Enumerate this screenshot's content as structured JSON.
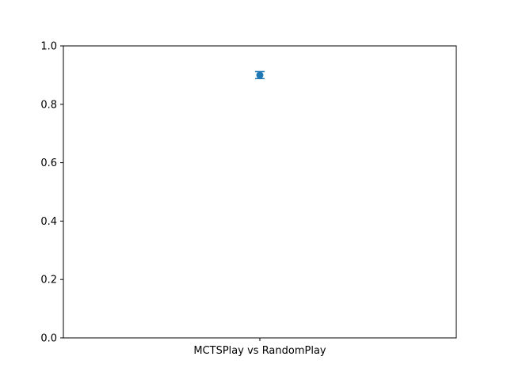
{
  "chart_data": {
    "type": "scatter",
    "title": "",
    "xlabel": "",
    "ylabel": "",
    "categories": [
      "MCTSPlay vs RandomPlay"
    ],
    "series": [
      {
        "values": [
          0.9
        ],
        "error_low": [
          0.888
        ],
        "error_high": [
          0.912
        ],
        "color": "#1f77b4"
      }
    ],
    "ylim": [
      0,
      1.0
    ],
    "yticks": [
      "0.0",
      "0.2",
      "0.4",
      "0.6",
      "0.8",
      "1.0"
    ],
    "grid": false,
    "legend": "none"
  }
}
